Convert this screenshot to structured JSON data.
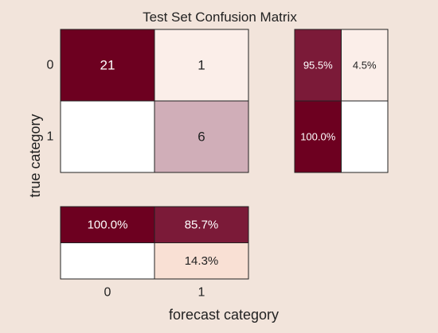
{
  "chart_data": [
    {
      "type": "heatmap",
      "title": "Test Set Confusion Matrix",
      "xlabel": "forecast category",
      "ylabel": "true category",
      "row_labels": [
        "0",
        "1"
      ],
      "col_labels": [
        "0",
        "1"
      ],
      "values": [
        [
          21,
          1
        ],
        [
          null,
          6
        ]
      ],
      "cell_text": [
        [
          "21",
          "1"
        ],
        [
          "",
          "6"
        ]
      ]
    },
    {
      "type": "heatmap",
      "title": "",
      "rows": 2,
      "cols": 2,
      "values": [
        [
          95.5,
          4.5
        ],
        [
          100.0,
          null
        ]
      ],
      "cell_text": [
        [
          "95.5%",
          "4.5%"
        ],
        [
          "100.0%",
          ""
        ]
      ]
    },
    {
      "type": "heatmap",
      "title": "",
      "rows": 2,
      "cols": 2,
      "values": [
        [
          100.0,
          85.7
        ],
        [
          null,
          14.3
        ]
      ],
      "cell_text": [
        [
          "100.0%",
          "85.7%"
        ],
        [
          "",
          "14.3%"
        ]
      ]
    }
  ],
  "colors": {
    "background": "#f2e4db",
    "dark_cell": "#6d0020",
    "medium_dark_cell": "#7b1a38",
    "light_cell": "#fbeee9",
    "mid_cell": "#d0aeb8",
    "peach_cell": "#f9e0d4",
    "empty_cell": "#ffffff",
    "gridline": "#222222"
  }
}
